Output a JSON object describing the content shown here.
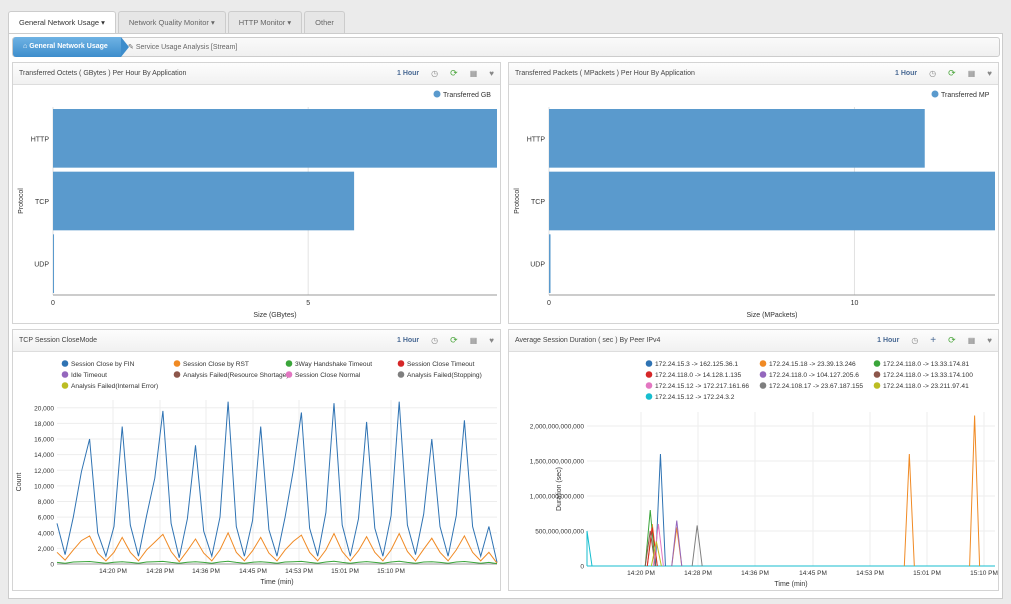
{
  "tabs": [
    {
      "label": "General Network Usage ▾"
    },
    {
      "label": "Network Quality Monitor ▾"
    },
    {
      "label": "HTTP Monitor ▾"
    },
    {
      "label": "Other"
    }
  ],
  "breadcrumb": {
    "active": "General Network Usage",
    "item": "Service Usage Analysis [Stream]"
  },
  "panels": {
    "octets": {
      "title": "Transferred Octets ( GBytes ) Per Hour By Application",
      "range": "1 Hour"
    },
    "packets": {
      "title": "Transferred Packets ( MPackets ) Per Hour By Application",
      "range": "1 Hour"
    },
    "tcp": {
      "title": "TCP Session CloseMode",
      "range": "1 Hour"
    },
    "duration": {
      "title": "Average Session Duration ( sec ) By Peer IPv4",
      "range": "1 Hour"
    }
  },
  "chart_data": [
    {
      "type": "bar",
      "orientation": "horizontal",
      "categories": [
        "HTTP",
        "TCP",
        "UDP"
      ],
      "series": [
        {
          "name": "Transferred GB",
          "values": [
            8.7,
            5.9,
            0.02
          ]
        }
      ],
      "xlabel": "Size (GBytes)",
      "ylabel": "Protocol",
      "xticks": [
        0,
        5
      ],
      "xlim": [
        0,
        8.7
      ],
      "color": "#5a9acd"
    },
    {
      "type": "bar",
      "orientation": "horizontal",
      "categories": [
        "HTTP",
        "TCP",
        "UDP"
      ],
      "series": [
        {
          "name": "Transferred MP",
          "values": [
            12.3,
            14.6,
            0.05
          ]
        }
      ],
      "xlabel": "Size (MPackets)",
      "ylabel": "Protocol",
      "xticks": [
        0,
        10
      ],
      "xlim": [
        0,
        14.6
      ],
      "color": "#5a9acd"
    },
    {
      "type": "line",
      "xlabel": "Time (min)",
      "ylabel": "Count",
      "xticks": [
        "14:20 PM",
        "14:28 PM",
        "14:36 PM",
        "14:45 PM",
        "14:53 PM",
        "15:01 PM",
        "15:10 PM"
      ],
      "yticks": [
        "0",
        "2,000",
        "4,000",
        "6,000",
        "8,000",
        "10,000",
        "12,000",
        "14,000",
        "16,000",
        "18,000",
        "20,000"
      ],
      "ylim": [
        0,
        21000
      ],
      "series": [
        {
          "name": "Session Close by FIN",
          "color": "#2f73b3",
          "values": [
            5200,
            1200,
            6000,
            11800,
            16000,
            4000,
            1000,
            4800,
            17600,
            5000,
            1000,
            6200,
            11000,
            19600,
            5200,
            800,
            5800,
            15200,
            4200,
            1000,
            6000,
            20800,
            4800,
            1000,
            5600,
            17600,
            4400,
            1000,
            6000,
            12000,
            19400,
            4600,
            1000,
            6600,
            20600,
            5000,
            1000,
            5800,
            18200,
            4600,
            1000,
            6200,
            20800,
            5000,
            1200,
            6400,
            16000,
            4800,
            1000,
            6200,
            18400,
            4800,
            1000,
            4800,
            200
          ]
        },
        {
          "name": "Session Close by RST",
          "color": "#f08a24",
          "values": [
            1500,
            500,
            1800,
            3000,
            3600,
            1400,
            400,
            1500,
            3400,
            1500,
            400,
            1800,
            2800,
            3800,
            1600,
            300,
            1700,
            3200,
            1400,
            400,
            1800,
            4000,
            1500,
            400,
            1700,
            3400,
            1400,
            400,
            1800,
            2900,
            3700,
            1500,
            400,
            1800,
            3900,
            1600,
            400,
            1700,
            3500,
            1500,
            400,
            1800,
            3900,
            1600,
            400,
            1900,
            3300,
            1500,
            400,
            1800,
            3600,
            1500,
            400,
            1500,
            100
          ]
        },
        {
          "name": "3Way Handshake Timeout",
          "color": "#3aa53a",
          "values": [
            200,
            100,
            250,
            300,
            320,
            200,
            100,
            220,
            300,
            200,
            100,
            250,
            300,
            330,
            200,
            100,
            230,
            300,
            200,
            100,
            250,
            340,
            200,
            100,
            230,
            300,
            200,
            100,
            250,
            300,
            330,
            200,
            100,
            250,
            340,
            200,
            100,
            230,
            310,
            200,
            100,
            250,
            340,
            200,
            100,
            250,
            300,
            200,
            100,
            250,
            320,
            200,
            100,
            200,
            50
          ]
        },
        {
          "name": "Session Close Timeout",
          "color": "#d62728",
          "values": []
        },
        {
          "name": "Idle Timeout",
          "color": "#9467bd",
          "values": []
        },
        {
          "name": "Analysis Failed(Resource Shortage)",
          "color": "#8c564b",
          "values": []
        },
        {
          "name": "Session Close Normal",
          "color": "#e377c2",
          "values": []
        },
        {
          "name": "Analysis Failed(Stopping)",
          "color": "#7f7f7f",
          "values": []
        },
        {
          "name": "Analysis Failed(Internal Error)",
          "color": "#bcbd22",
          "values": []
        }
      ]
    },
    {
      "type": "line",
      "xlabel": "Time (min)",
      "ylabel": "Duration (sec)",
      "xticks": [
        "14:20 PM",
        "14:28 PM",
        "14:36 PM",
        "14:45 PM",
        "14:53 PM",
        "15:01 PM",
        "15:10 PM"
      ],
      "yticks": [
        "0",
        "500,000,000,000",
        "1,000,000,000,000",
        "1,500,000,000,000",
        "2,000,000,000,000"
      ],
      "ylim": [
        0,
        2200000000000
      ],
      "series": [
        {
          "name": "172.24.15.3 -> 162.125.36.1",
          "color": "#2f73b3",
          "spikes": [
            [
              0.18,
              1600000000000
            ]
          ]
        },
        {
          "name": "172.24.15.18 -> 23.39.13.246",
          "color": "#f08a24",
          "spikes": [
            [
              0.79,
              1600000000000
            ],
            [
              0.95,
              2150000000000
            ],
            [
              0.16,
              600000000000
            ],
            [
              0.22,
              550000000000
            ]
          ]
        },
        {
          "name": "172.24.118.0 -> 13.33.174.81",
          "color": "#3aa53a",
          "spikes": [
            [
              0.155,
              800000000000
            ]
          ]
        },
        {
          "name": "172.24.118.0 -> 14.128.1.135",
          "color": "#d62728",
          "spikes": [
            [
              0.16,
              550000000000
            ]
          ]
        },
        {
          "name": "172.24.118.0 -> 104.127.205.6",
          "color": "#9467bd",
          "spikes": [
            [
              0.22,
              650000000000
            ]
          ]
        },
        {
          "name": "172.24.118.0 -> 13.33.174.100",
          "color": "#8c564b",
          "spikes": [
            [
              0.155,
              500000000000
            ]
          ]
        },
        {
          "name": "172.24.15.12 -> 172.217.161.66",
          "color": "#e377c2",
          "spikes": [
            [
              0.175,
              600000000000
            ]
          ]
        },
        {
          "name": "172.24.108.17 -> 23.67.187.155",
          "color": "#7f7f7f",
          "spikes": [
            [
              0.27,
              580000000000
            ]
          ]
        },
        {
          "name": "172.24.118.0 -> 23.211.97.41",
          "color": "#bcbd22",
          "spikes": [
            [
              0.17,
              350000000000
            ]
          ]
        },
        {
          "name": "172.24.15.12 -> 172.24.3.2",
          "color": "#17becf",
          "spikes": [
            [
              0.0,
              500000000000
            ]
          ]
        }
      ]
    }
  ]
}
